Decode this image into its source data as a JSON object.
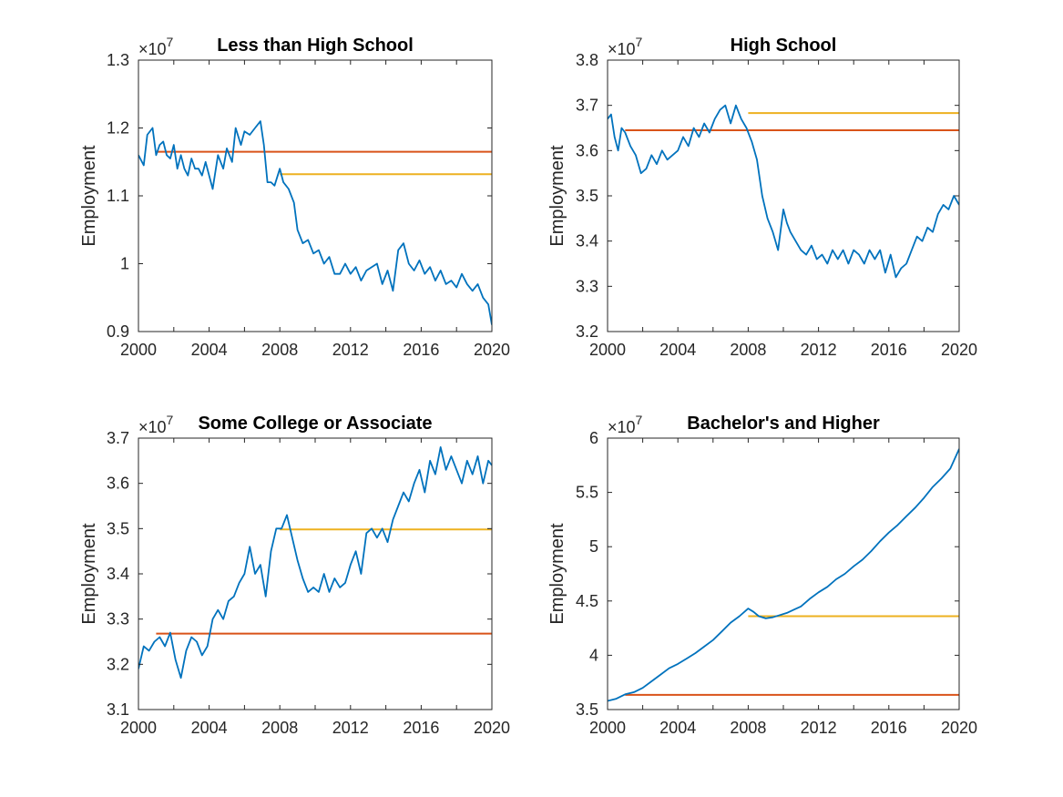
{
  "colors": {
    "series": "#0072BD",
    "orange_line": "#D95319",
    "yellow_line": "#EDB120",
    "axes": "#262626"
  },
  "chart_data": [
    {
      "type": "line",
      "title": "Less than High School",
      "ylabel": "Employment",
      "y_multiplier": "×10",
      "y_exponent": "7",
      "xlim": [
        2000,
        2020
      ],
      "ylim": [
        0.9,
        1.3
      ],
      "x_ticks": [
        2000,
        2004,
        2008,
        2012,
        2016,
        2020
      ],
      "x_tick_labels": [
        "2000",
        "2004",
        "2008",
        "2012",
        "2016",
        "2020"
      ],
      "y_ticks": [
        0.9,
        1.0,
        1.1,
        1.2,
        1.3
      ],
      "y_tick_labels": [
        "0.9",
        "1",
        "1.1",
        "1.2",
        "1.3"
      ],
      "series": [
        {
          "color": "#0072BD",
          "x": [
            2000,
            2000.3,
            2000.5,
            2000.8,
            2001,
            2001.2,
            2001.4,
            2001.6,
            2001.8,
            2002,
            2002.2,
            2002.4,
            2002.6,
            2002.8,
            2003,
            2003.2,
            2003.4,
            2003.6,
            2003.8,
            2004,
            2004.2,
            2004.5,
            2004.8,
            2005,
            2005.3,
            2005.5,
            2005.8,
            2006,
            2006.3,
            2006.6,
            2006.9,
            2007.1,
            2007.3,
            2007.5,
            2007.7,
            2008,
            2008.2,
            2008.5,
            2008.8,
            2009,
            2009.3,
            2009.6,
            2009.9,
            2010.2,
            2010.5,
            2010.8,
            2011.1,
            2011.4,
            2011.7,
            2012,
            2012.3,
            2012.6,
            2012.9,
            2013.2,
            2013.5,
            2013.8,
            2014.1,
            2014.4,
            2014.7,
            2015,
            2015.3,
            2015.6,
            2015.9,
            2016.2,
            2016.5,
            2016.8,
            2017.1,
            2017.4,
            2017.7,
            2018,
            2018.3,
            2018.6,
            2018.9,
            2019.2,
            2019.5,
            2019.8,
            2020
          ],
          "y": [
            1.16,
            1.145,
            1.19,
            1.2,
            1.16,
            1.175,
            1.18,
            1.16,
            1.155,
            1.175,
            1.14,
            1.16,
            1.14,
            1.13,
            1.155,
            1.14,
            1.14,
            1.13,
            1.15,
            1.13,
            1.11,
            1.16,
            1.14,
            1.17,
            1.15,
            1.2,
            1.175,
            1.195,
            1.19,
            1.2,
            1.21,
            1.175,
            1.12,
            1.12,
            1.115,
            1.14,
            1.12,
            1.11,
            1.09,
            1.05,
            1.03,
            1.035,
            1.015,
            1.02,
            1.0,
            1.01,
            0.985,
            0.985,
            1.0,
            0.985,
            0.995,
            0.975,
            0.99,
            0.995,
            1.0,
            0.97,
            0.99,
            0.96,
            1.02,
            1.03,
            1.0,
            0.99,
            1.005,
            0.985,
            0.995,
            0.975,
            0.99,
            0.97,
            0.975,
            0.965,
            0.985,
            0.97,
            0.96,
            0.97,
            0.95,
            0.94,
            0.91
          ]
        },
        {
          "color": "#D95319",
          "x": [
            2001,
            2020
          ],
          "y": [
            1.165,
            1.165
          ]
        },
        {
          "color": "#EDB120",
          "x": [
            2008,
            2020
          ],
          "y": [
            1.132,
            1.132
          ]
        }
      ]
    },
    {
      "type": "line",
      "title": "High School",
      "ylabel": "Employment",
      "y_multiplier": "×10",
      "y_exponent": "7",
      "xlim": [
        2000,
        2020
      ],
      "ylim": [
        3.2,
        3.8
      ],
      "x_ticks": [
        2000,
        2004,
        2008,
        2012,
        2016,
        2020
      ],
      "x_tick_labels": [
        "2000",
        "2004",
        "2008",
        "2012",
        "2016",
        "2020"
      ],
      "y_ticks": [
        3.2,
        3.3,
        3.4,
        3.5,
        3.6,
        3.7,
        3.8
      ],
      "y_tick_labels": [
        "3.2",
        "3.3",
        "3.4",
        "3.5",
        "3.6",
        "3.7",
        "3.8"
      ],
      "series": [
        {
          "color": "#0072BD",
          "x": [
            2000,
            2000.2,
            2000.4,
            2000.6,
            2000.8,
            2001,
            2001.3,
            2001.6,
            2001.9,
            2002.2,
            2002.5,
            2002.8,
            2003.1,
            2003.4,
            2003.7,
            2004,
            2004.3,
            2004.6,
            2004.9,
            2005.2,
            2005.5,
            2005.8,
            2006.1,
            2006.4,
            2006.7,
            2007,
            2007.3,
            2007.6,
            2007.9,
            2008.2,
            2008.5,
            2008.8,
            2009.1,
            2009.4,
            2009.7,
            2010,
            2010.2,
            2010.4,
            2010.7,
            2011,
            2011.3,
            2011.6,
            2011.9,
            2012.2,
            2012.5,
            2012.8,
            2013.1,
            2013.4,
            2013.7,
            2014,
            2014.3,
            2014.6,
            2014.9,
            2015.2,
            2015.5,
            2015.8,
            2016.1,
            2016.4,
            2016.7,
            2017,
            2017.3,
            2017.6,
            2017.9,
            2018.2,
            2018.5,
            2018.8,
            2019.1,
            2019.4,
            2019.7,
            2020
          ],
          "y": [
            3.67,
            3.68,
            3.63,
            3.6,
            3.65,
            3.64,
            3.61,
            3.59,
            3.55,
            3.56,
            3.59,
            3.57,
            3.6,
            3.58,
            3.59,
            3.6,
            3.63,
            3.61,
            3.65,
            3.63,
            3.66,
            3.64,
            3.67,
            3.69,
            3.7,
            3.66,
            3.7,
            3.67,
            3.65,
            3.62,
            3.58,
            3.5,
            3.45,
            3.42,
            3.38,
            3.47,
            3.44,
            3.42,
            3.4,
            3.38,
            3.37,
            3.39,
            3.36,
            3.37,
            3.35,
            3.38,
            3.36,
            3.38,
            3.35,
            3.38,
            3.37,
            3.35,
            3.38,
            3.36,
            3.38,
            3.33,
            3.37,
            3.32,
            3.34,
            3.35,
            3.38,
            3.41,
            3.4,
            3.43,
            3.42,
            3.46,
            3.48,
            3.47,
            3.5,
            3.48
          ]
        },
        {
          "color": "#D95319",
          "x": [
            2001,
            2020
          ],
          "y": [
            3.645,
            3.645
          ]
        },
        {
          "color": "#EDB120",
          "x": [
            2008,
            2020
          ],
          "y": [
            3.683,
            3.683
          ]
        }
      ]
    },
    {
      "type": "line",
      "title": "Some College or Associate",
      "ylabel": "Employment",
      "y_multiplier": "×10",
      "y_exponent": "7",
      "xlim": [
        2000,
        2020
      ],
      "ylim": [
        3.1,
        3.7
      ],
      "x_ticks": [
        2000,
        2004,
        2008,
        2012,
        2016,
        2020
      ],
      "x_tick_labels": [
        "2000",
        "2004",
        "2008",
        "2012",
        "2016",
        "2020"
      ],
      "y_ticks": [
        3.1,
        3.2,
        3.3,
        3.4,
        3.5,
        3.6,
        3.7
      ],
      "y_tick_labels": [
        "3.1",
        "3.2",
        "3.3",
        "3.4",
        "3.5",
        "3.6",
        "3.7"
      ],
      "series": [
        {
          "color": "#0072BD",
          "x": [
            2000,
            2000.3,
            2000.6,
            2000.9,
            2001.2,
            2001.5,
            2001.8,
            2002.1,
            2002.4,
            2002.7,
            2003,
            2003.3,
            2003.6,
            2003.9,
            2004.2,
            2004.5,
            2004.8,
            2005.1,
            2005.4,
            2005.7,
            2006,
            2006.3,
            2006.6,
            2006.9,
            2007.2,
            2007.5,
            2007.8,
            2008.1,
            2008.4,
            2008.7,
            2009,
            2009.3,
            2009.6,
            2009.9,
            2010.2,
            2010.5,
            2010.8,
            2011.1,
            2011.4,
            2011.7,
            2012,
            2012.3,
            2012.6,
            2012.9,
            2013.2,
            2013.5,
            2013.8,
            2014.1,
            2014.4,
            2014.7,
            2015,
            2015.3,
            2015.6,
            2015.9,
            2016.2,
            2016.5,
            2016.8,
            2017.1,
            2017.4,
            2017.7,
            2018,
            2018.3,
            2018.6,
            2018.9,
            2019.2,
            2019.5,
            2019.8,
            2020
          ],
          "y": [
            3.19,
            3.24,
            3.23,
            3.25,
            3.26,
            3.24,
            3.27,
            3.21,
            3.17,
            3.23,
            3.26,
            3.25,
            3.22,
            3.24,
            3.3,
            3.32,
            3.3,
            3.34,
            3.35,
            3.38,
            3.4,
            3.46,
            3.4,
            3.42,
            3.35,
            3.45,
            3.5,
            3.5,
            3.53,
            3.48,
            3.43,
            3.39,
            3.36,
            3.37,
            3.36,
            3.4,
            3.36,
            3.39,
            3.37,
            3.38,
            3.42,
            3.45,
            3.4,
            3.49,
            3.5,
            3.48,
            3.5,
            3.47,
            3.52,
            3.55,
            3.58,
            3.56,
            3.6,
            3.63,
            3.58,
            3.65,
            3.62,
            3.68,
            3.63,
            3.66,
            3.63,
            3.6,
            3.65,
            3.62,
            3.66,
            3.6,
            3.65,
            3.64
          ]
        },
        {
          "color": "#D95319",
          "x": [
            2001,
            2020
          ],
          "y": [
            3.268,
            3.268
          ]
        },
        {
          "color": "#EDB120",
          "x": [
            2008,
            2020
          ],
          "y": [
            3.498,
            3.498
          ]
        }
      ]
    },
    {
      "type": "line",
      "title": "Bachelor's and Higher",
      "ylabel": "Employment",
      "y_multiplier": "×10",
      "y_exponent": "7",
      "xlim": [
        2000,
        2020
      ],
      "ylim": [
        3.5,
        6.0
      ],
      "x_ticks": [
        2000,
        2004,
        2008,
        2012,
        2016,
        2020
      ],
      "x_tick_labels": [
        "2000",
        "2004",
        "2008",
        "2012",
        "2016",
        "2020"
      ],
      "y_ticks": [
        3.5,
        4.0,
        4.5,
        5.0,
        5.5,
        6.0
      ],
      "y_tick_labels": [
        "3.5",
        "4",
        "4.5",
        "5",
        "5.5",
        "6"
      ],
      "series": [
        {
          "color": "#0072BD",
          "x": [
            2000,
            2000.5,
            2001,
            2001.5,
            2002,
            2002.5,
            2003,
            2003.5,
            2004,
            2004.5,
            2005,
            2005.5,
            2006,
            2006.5,
            2007,
            2007.5,
            2008,
            2008.3,
            2008.6,
            2009,
            2009.4,
            2009.8,
            2010.2,
            2010.6,
            2011,
            2011.5,
            2012,
            2012.5,
            2013,
            2013.5,
            2014,
            2014.5,
            2015,
            2015.5,
            2016,
            2016.5,
            2017,
            2017.5,
            2018,
            2018.5,
            2019,
            2019.5,
            2020
          ],
          "y": [
            3.58,
            3.6,
            3.64,
            3.66,
            3.7,
            3.76,
            3.82,
            3.88,
            3.92,
            3.97,
            4.02,
            4.08,
            4.14,
            4.22,
            4.3,
            4.36,
            4.43,
            4.4,
            4.36,
            4.34,
            4.35,
            4.37,
            4.39,
            4.42,
            4.45,
            4.52,
            4.58,
            4.63,
            4.7,
            4.75,
            4.82,
            4.88,
            4.96,
            5.05,
            5.13,
            5.2,
            5.28,
            5.36,
            5.45,
            5.55,
            5.63,
            5.72,
            5.9
          ]
        },
        {
          "color": "#D95319",
          "x": [
            2001,
            2020
          ],
          "y": [
            3.635,
            3.635
          ]
        },
        {
          "color": "#EDB120",
          "x": [
            2008,
            2020
          ],
          "y": [
            4.36,
            4.36
          ]
        }
      ]
    }
  ]
}
